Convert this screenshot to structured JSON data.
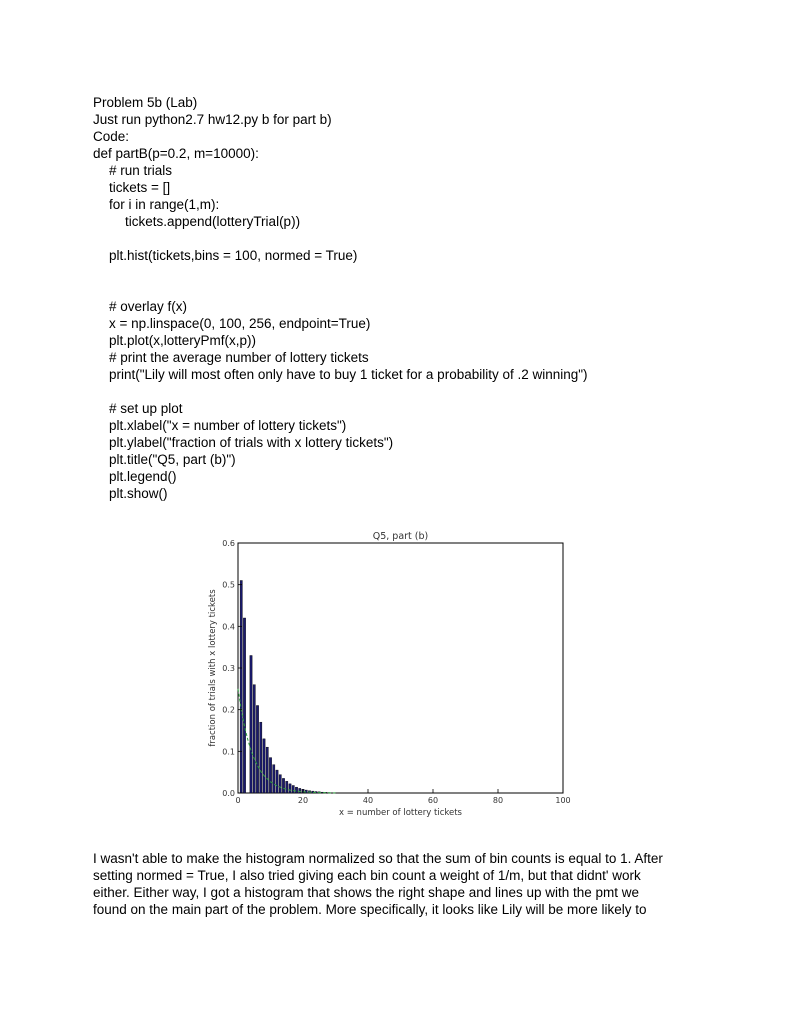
{
  "document": {
    "heading": "Problem 5b (Lab)",
    "run_instruction": "Just run python2.7 hw12.py b for part b)",
    "code_label": "Code:",
    "code_lines": [
      {
        "text": "def partB(p=0.2, m=10000):",
        "indent": 0
      },
      {
        "text": "# run trials",
        "indent": 1
      },
      {
        "text": "tickets = []",
        "indent": 1
      },
      {
        "text": "for i in range(1,m):",
        "indent": 1
      },
      {
        "text": "tickets.append(lotteryTrial(p))",
        "indent": 2
      },
      {
        "text": "",
        "indent": 0
      },
      {
        "text": "plt.hist(tickets,bins = 100, normed = True)",
        "indent": 1
      },
      {
        "text": "",
        "indent": 0
      },
      {
        "text": "",
        "indent": 0
      },
      {
        "text": "# overlay f(x)",
        "indent": 1
      },
      {
        "text": "x = np.linspace(0, 100, 256, endpoint=True)",
        "indent": 1
      },
      {
        "text": "plt.plot(x,lotteryPmf(x,p))",
        "indent": 1
      },
      {
        "text": "# print the average number of lottery tickets",
        "indent": 1
      },
      {
        "text": "print(\"Lily will most often only have to buy 1 ticket for a probability of .2 winning\")",
        "indent": 1
      },
      {
        "text": "",
        "indent": 0
      },
      {
        "text": "# set up plot",
        "indent": 1
      },
      {
        "text": "plt.xlabel(\"x = number of lottery tickets\")",
        "indent": 1
      },
      {
        "text": "plt.ylabel(\"fraction of trials with x lottery tickets\")",
        "indent": 1
      },
      {
        "text": "plt.title(\"Q5, part (b)\")",
        "indent": 1
      },
      {
        "text": "plt.legend()",
        "indent": 1
      },
      {
        "text": "plt.show()",
        "indent": 1
      }
    ],
    "paragraph_lines": [
      "I wasn't able to make the histogram normalized so that the sum of bin counts is equal to 1. After",
      "setting normed = True, I also tried giving each bin count a weight of 1/m, but that didnt' work",
      "either. Either way, I got a histogram that shows the right shape and lines up with the pmt we",
      "found on the main part of the problem. More specifically, it looks like Lily will be more likely to"
    ]
  },
  "chart_data": {
    "type": "bar",
    "title": "Q5, part (b)",
    "xlabel": "x = number of lottery tickets",
    "ylabel": "fraction of trials with x lottery tickets",
    "xlim": [
      0,
      100
    ],
    "ylim": [
      0,
      0.6
    ],
    "xticks": [
      0,
      20,
      40,
      60,
      80,
      100
    ],
    "yticks": [
      0.0,
      0.1,
      0.2,
      0.3,
      0.4,
      0.5,
      0.6
    ],
    "ytick_labels": [
      "0.0",
      "0.1",
      "0.2",
      "0.3",
      "0.4",
      "0.5",
      "0.6"
    ],
    "grid": false,
    "colors": {
      "bars": "#1a1a6e",
      "pmf_line": "#2e9e3e"
    },
    "series": [
      {
        "type": "bar",
        "x": [
          1,
          2,
          3,
          4,
          5,
          6,
          7,
          8,
          9,
          10,
          11,
          12,
          13,
          14,
          15,
          16,
          17,
          18,
          19,
          20,
          21,
          22,
          23,
          24,
          25,
          26,
          27,
          28
        ],
        "values": [
          0.51,
          0.42,
          0.0,
          0.33,
          0.26,
          0.21,
          0.17,
          0.13,
          0.11,
          0.085,
          0.068,
          0.055,
          0.044,
          0.035,
          0.028,
          0.022,
          0.018,
          0.014,
          0.011,
          0.009,
          0.007,
          0.0055,
          0.0045,
          0.0035,
          0.0028,
          0.002,
          0.0015,
          0.001
        ]
      },
      {
        "type": "line",
        "x": [
          0,
          1,
          2,
          3,
          4,
          5,
          6,
          7,
          8,
          9,
          10,
          12,
          14,
          16,
          18,
          20,
          25,
          30
        ],
        "values": [
          0.25,
          0.2,
          0.16,
          0.128,
          0.102,
          0.082,
          0.066,
          0.052,
          0.042,
          0.034,
          0.027,
          0.017,
          0.011,
          0.007,
          0.0045,
          0.0029,
          0.001,
          0.0003
        ]
      }
    ]
  }
}
